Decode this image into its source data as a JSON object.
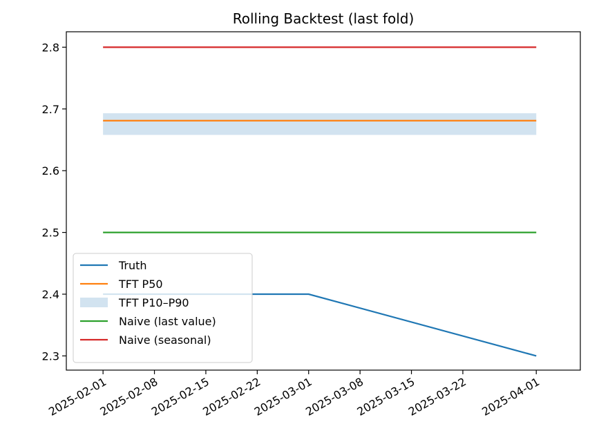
{
  "chart_data": {
    "type": "line",
    "title": "Rolling Backtest (last fold)",
    "xlabel": "",
    "ylabel": "",
    "xlim": [
      "2025-01-27",
      "2025-04-07"
    ],
    "ylim": [
      2.277,
      2.825
    ],
    "x_ticks": [
      "2025-02-01",
      "2025-02-08",
      "2025-02-15",
      "2025-02-22",
      "2025-03-01",
      "2025-03-08",
      "2025-03-15",
      "2025-03-22",
      "2025-04-01"
    ],
    "y_ticks": [
      2.3,
      2.4,
      2.5,
      2.6,
      2.7,
      2.8
    ],
    "y_tick_labels": [
      "2.3",
      "2.4",
      "2.5",
      "2.6",
      "2.7",
      "2.8"
    ],
    "grid": false,
    "legend_position": "lower-left",
    "series": [
      {
        "name": "Truth",
        "kind": "line",
        "color": "#1f77b4",
        "x": [
          "2025-02-01",
          "2025-03-01",
          "2025-04-01"
        ],
        "values": [
          2.4,
          2.4,
          2.3
        ]
      },
      {
        "name": "TFT P50",
        "kind": "line",
        "color": "#ff7f0e",
        "x": [
          "2025-02-01",
          "2025-04-01"
        ],
        "values": [
          2.681,
          2.681
        ]
      },
      {
        "name": "TFT P10–P90",
        "kind": "band",
        "color": "#c7dcec",
        "x": [
          "2025-02-01",
          "2025-04-01"
        ],
        "lower": [
          2.658,
          2.658
        ],
        "upper": [
          2.693,
          2.693
        ]
      },
      {
        "name": "Naive (last value)",
        "kind": "line",
        "color": "#2ca02c",
        "x": [
          "2025-02-01",
          "2025-04-01"
        ],
        "values": [
          2.5,
          2.5
        ]
      },
      {
        "name": "Naive (seasonal)",
        "kind": "line",
        "color": "#d62728",
        "x": [
          "2025-02-01",
          "2025-04-01"
        ],
        "values": [
          2.8,
          2.8
        ]
      }
    ]
  }
}
